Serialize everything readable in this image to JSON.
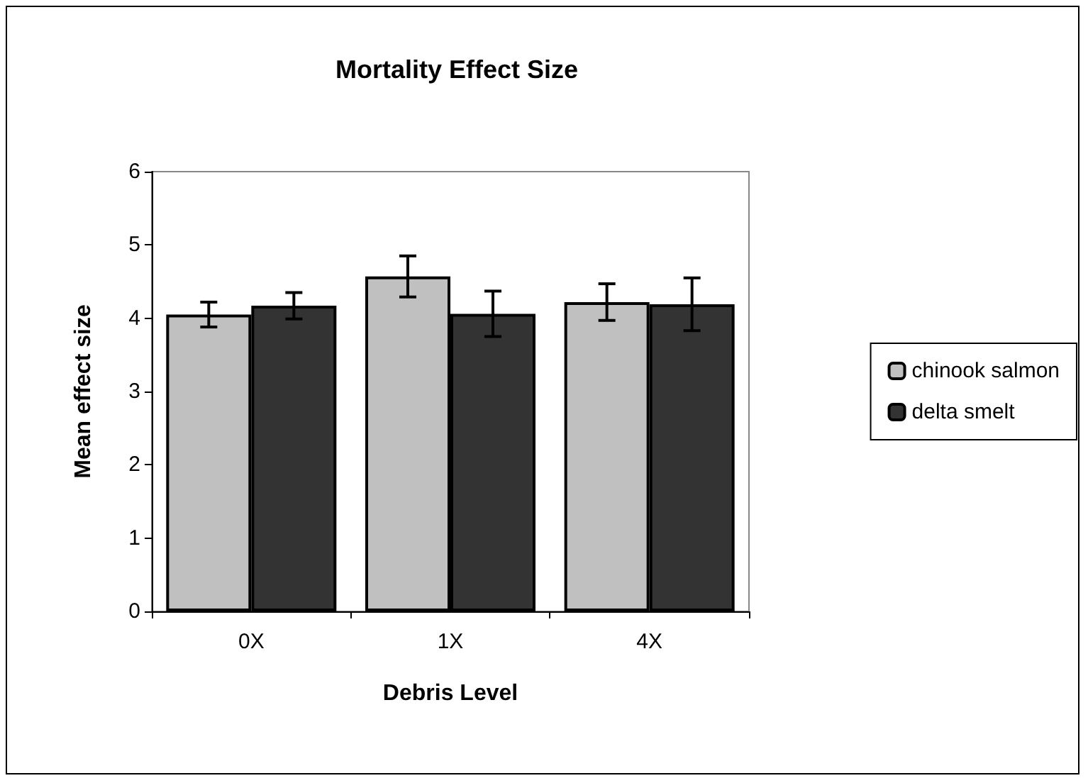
{
  "chart_data": {
    "type": "bar",
    "title": "Mortality Effect Size",
    "xlabel": "Debris Level",
    "ylabel": "Mean effect size",
    "categories": [
      "0X",
      "1X",
      "4X"
    ],
    "series": [
      {
        "name": "chinook salmon",
        "color": "#c0c0c0",
        "values": [
          4.05,
          4.57,
          4.22
        ],
        "errors": [
          0.17,
          0.28,
          0.25
        ]
      },
      {
        "name": "delta smelt",
        "color": "#333333",
        "values": [
          4.17,
          4.06,
          4.19
        ],
        "errors": [
          0.18,
          0.31,
          0.36
        ]
      }
    ],
    "ylim": [
      0,
      6
    ],
    "yticks": [
      0,
      1,
      2,
      3,
      4,
      5,
      6
    ],
    "grid": false,
    "legend": "right"
  }
}
